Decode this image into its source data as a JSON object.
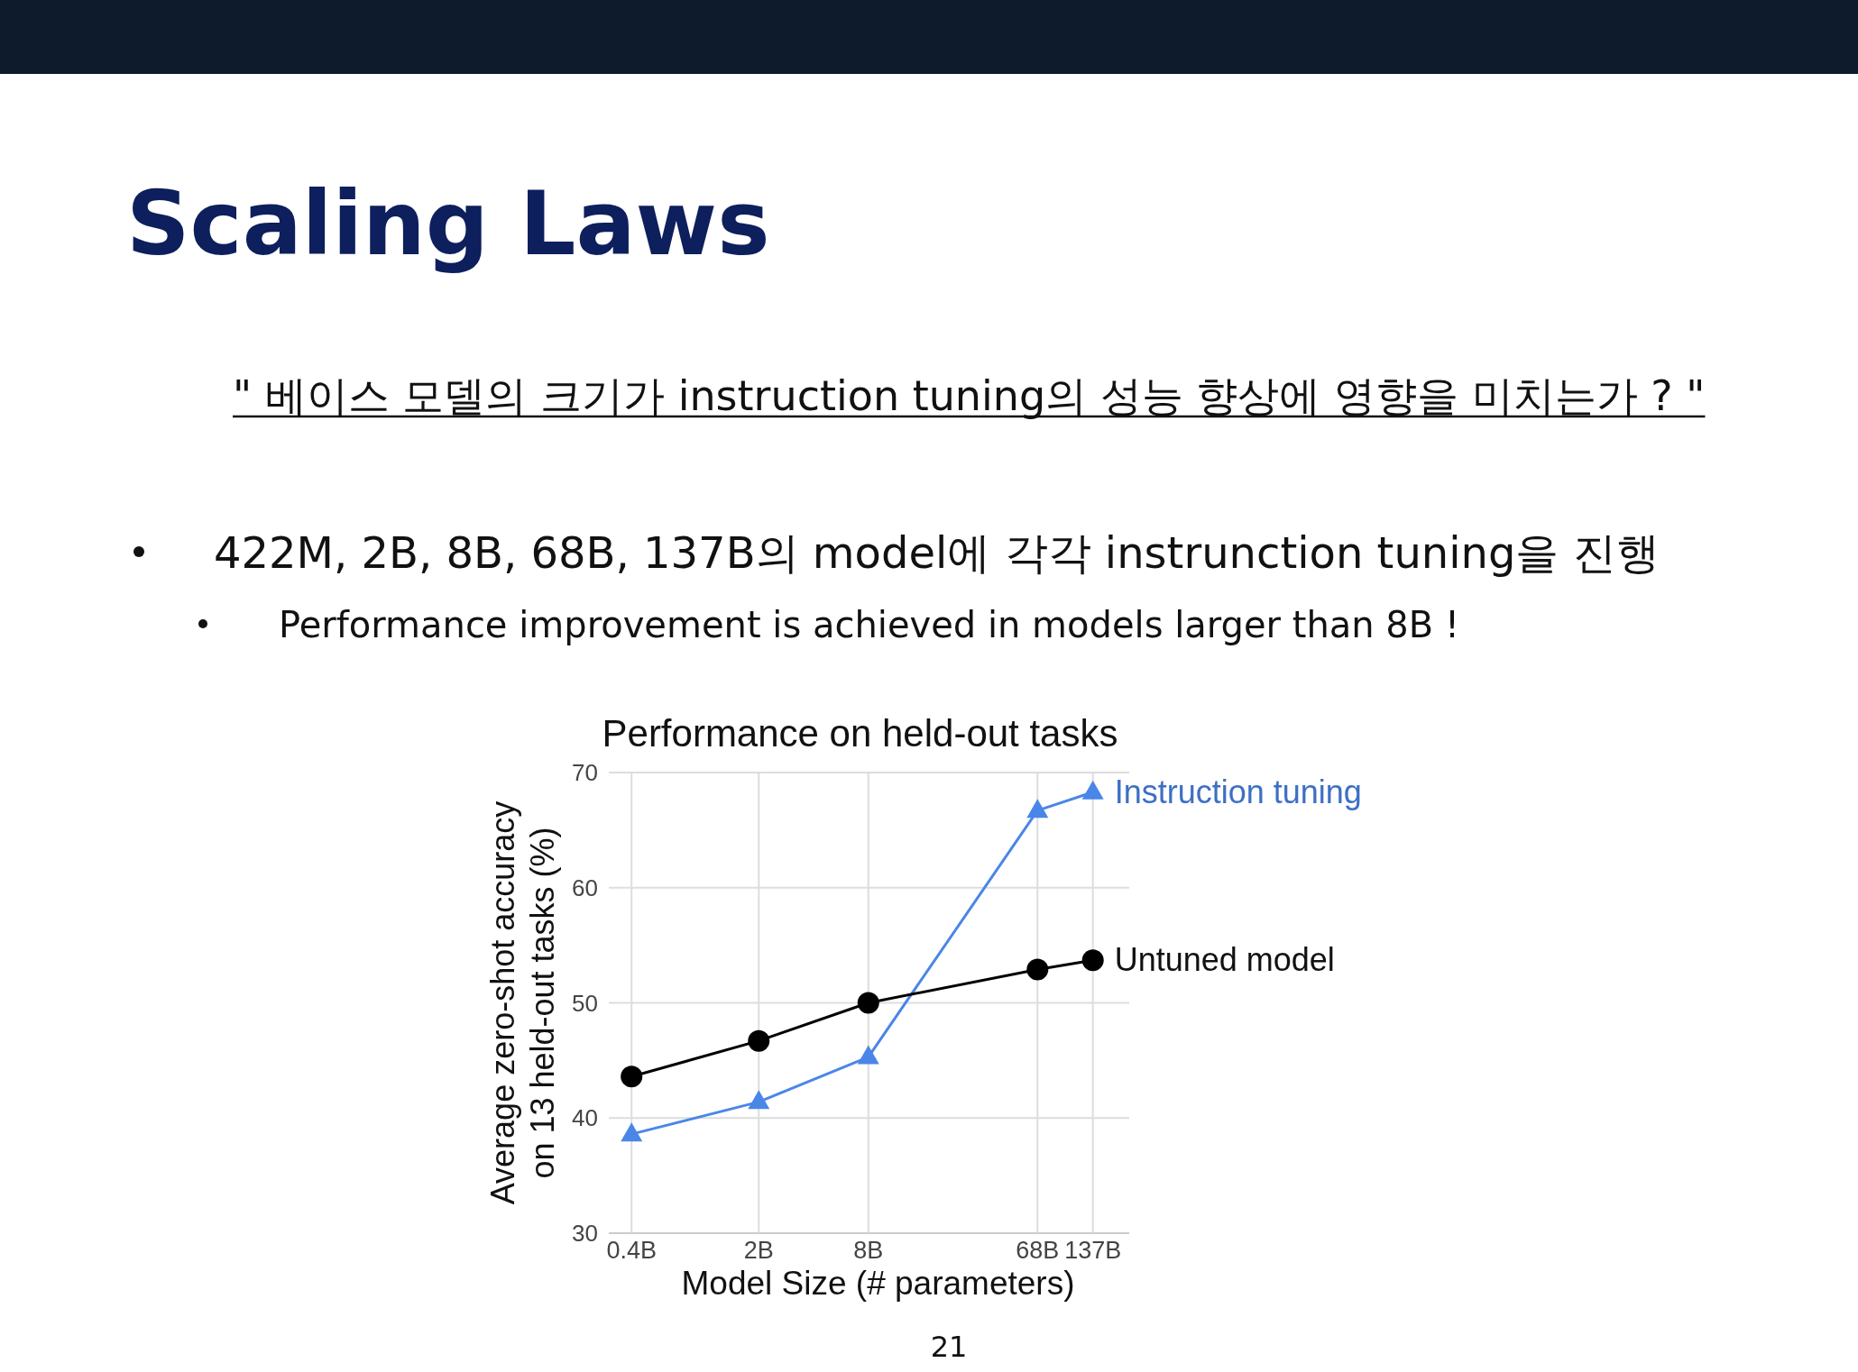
{
  "chart_data": {
    "type": "line",
    "title": "Performance on held-out tasks",
    "xlabel": "Model Size (# parameters)",
    "ylabel": "Average zero-shot accuracy\non 13 held-out tasks (%)",
    "x": [
      0.4,
      2,
      8,
      68,
      137
    ],
    "series": [
      {
        "name": "Instruction tuning",
        "color": "#4a86e8",
        "marker": "triangle",
        "values": [
          38.6,
          41.4,
          45.3,
          66.7,
          68.3
        ]
      },
      {
        "name": "Untuned model",
        "color": "#000000",
        "marker": "circle",
        "values": [
          43.6,
          46.7,
          50,
          52.9,
          53.7
        ]
      }
    ],
    "log": "x",
    "xlim": [
      0.3,
      217
    ],
    "xticks": [
      {
        "value": 0.4,
        "label": "0.4B"
      },
      {
        "value": 2,
        "label": "2B"
      },
      {
        "value": 8,
        "label": "8B"
      },
      {
        "value": 68,
        "label": "68B"
      },
      {
        "value": 137,
        "label": "137B"
      }
    ],
    "ylim": [
      30,
      70
    ],
    "yticks": [
      30,
      40,
      50,
      60,
      70
    ],
    "grid": true,
    "annotations": [
      "Scaling Laws",
      "\" 베이스 모델의 크기가 instruction tuning의 성능 향상에 영향을 미치는가 ? \"",
      "422M, 2B, 8B, 68B, 137B의 model에 각각 instrunction tuning을 진행",
      "Performance improvement is achieved in models larger than 8B !",
      "21"
    ]
  }
}
